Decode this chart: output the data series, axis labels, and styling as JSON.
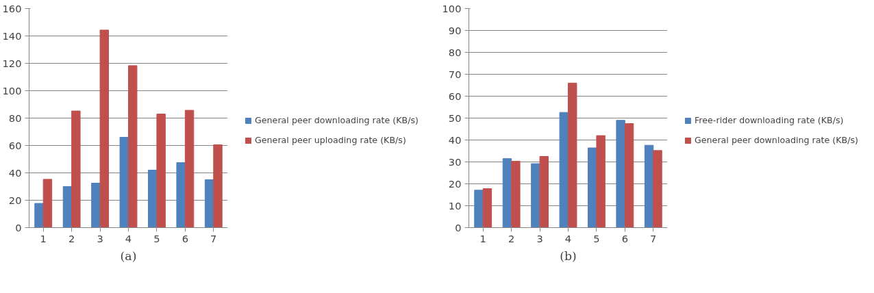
{
  "chart_data": [
    {
      "type": "bar",
      "categories": [
        "1",
        "2",
        "3",
        "4",
        "5",
        "6",
        "7"
      ],
      "ylim": [
        0,
        160
      ],
      "yticks": [
        0,
        20,
        40,
        60,
        80,
        100,
        120,
        140,
        160
      ],
      "grid": "y",
      "legend": "right",
      "series": [
        {
          "name": "General peer downloading rate (KB/s)",
          "color": "#4f81bd",
          "values": [
            17.7,
            30,
            32.5,
            66,
            42,
            47.5,
            35
          ]
        },
        {
          "name": "General peer uploading rate (KB/s)",
          "color": "#c0504d",
          "values": [
            35.3,
            85.2,
            144.3,
            118.3,
            83,
            85.7,
            60.5
          ]
        }
      ],
      "annotations": [
        "(a)"
      ]
    },
    {
      "type": "bar",
      "categories": [
        "1",
        "2",
        "3",
        "4",
        "5",
        "6",
        "7"
      ],
      "ylim": [
        0,
        100
      ],
      "yticks": [
        0,
        10,
        20,
        30,
        40,
        50,
        60,
        70,
        80,
        90,
        100
      ],
      "grid": "y",
      "legend": "right",
      "series": [
        {
          "name": "Free-rider downloading rate (KB/s)",
          "color": "#4f81bd",
          "values": [
            17.1,
            31.5,
            29.2,
            52.6,
            36.4,
            49,
            37.6
          ]
        },
        {
          "name": "General peer downloading rate (KB/s)",
          "color": "#c0504d",
          "values": [
            17.8,
            30.3,
            32.5,
            66,
            42,
            47.5,
            35.2
          ]
        }
      ],
      "annotations": [
        "(b)"
      ]
    }
  ]
}
